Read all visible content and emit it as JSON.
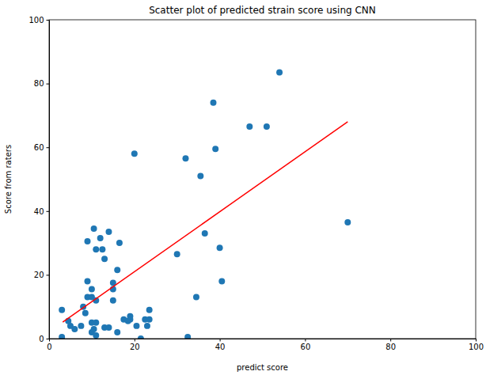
{
  "chart_data": {
    "type": "scatter",
    "title": "Scatter plot of predicted strain score using CNN",
    "x_label": "predict score",
    "y_label": "Score from raters",
    "xlim": [
      0,
      100
    ],
    "ylim": [
      0,
      100
    ],
    "xticks": [
      0,
      20,
      40,
      60,
      80,
      100
    ],
    "yticks": [
      0,
      20,
      40,
      60,
      80,
      100
    ],
    "grid": false,
    "series": [
      {
        "type": "scatter",
        "color": "#1f77b4",
        "marker": "circle",
        "x": [
          3,
          3,
          4.5,
          5,
          6,
          7.5,
          8,
          8.5,
          9,
          9,
          9,
          10,
          10,
          10.5,
          10,
          10,
          10.5,
          11,
          11,
          11,
          11,
          12,
          12.5,
          13,
          13,
          14,
          14,
          15,
          15,
          15,
          16,
          16,
          16.5,
          17.5,
          18.5,
          19,
          19,
          20,
          20.5,
          21.5,
          22.5,
          23,
          23.5,
          23.5,
          30,
          32,
          32.5,
          34.5,
          35.5,
          36.5,
          38.5,
          39,
          40,
          40.5,
          47,
          51,
          54,
          70
        ],
        "values": [
          9,
          0.5,
          5.5,
          4,
          3,
          4,
          10,
          8,
          13,
          30.5,
          18,
          15.5,
          13,
          34.5,
          5,
          2,
          3,
          28,
          1,
          12,
          5,
          31.5,
          28,
          25,
          3.5,
          33.5,
          3.5,
          17.5,
          15.5,
          12,
          21.5,
          2,
          30,
          6,
          5.5,
          7,
          6,
          58,
          4,
          0,
          6,
          4,
          6,
          9,
          26.5,
          56.5,
          0.5,
          13,
          51,
          33,
          74,
          59.5,
          28.5,
          18,
          66.5,
          66.5,
          83.5,
          36.5
        ]
      },
      {
        "type": "line",
        "color": "#ff0000",
        "line_style": "solid",
        "x": [
          3.2,
          70
        ],
        "values": [
          5.2,
          68
        ]
      }
    ]
  }
}
